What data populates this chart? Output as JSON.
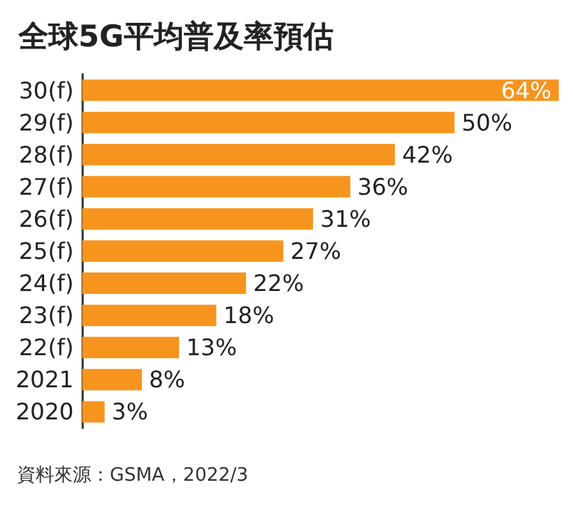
{
  "chart_data": {
    "type": "bar",
    "orientation": "horizontal",
    "title": "全球5G平均普及率預估",
    "categories": [
      "30(f)",
      "29(f)",
      "28(f)",
      "27(f)",
      "26(f)",
      "25(f)",
      "24(f)",
      "23(f)",
      "22(f)",
      "2021",
      "2020"
    ],
    "values": [
      64,
      50,
      42,
      36,
      31,
      27,
      22,
      18,
      13,
      8,
      3
    ],
    "value_labels": [
      "64%",
      "50%",
      "42%",
      "36%",
      "31%",
      "27%",
      "22%",
      "18%",
      "13%",
      "8%",
      "3%"
    ],
    "color": "#f7941d",
    "annotations": [
      "資料來源：GSMA，2022/3"
    ]
  }
}
